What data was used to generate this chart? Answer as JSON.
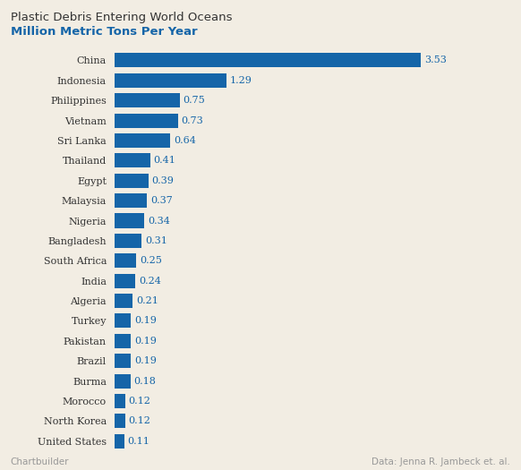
{
  "title_line1": "Plastic Debris Entering World Oceans",
  "title_line2": "Million Metric Tons Per Year",
  "countries": [
    "China",
    "Indonesia",
    "Philippines",
    "Vietnam",
    "Sri Lanka",
    "Thailand",
    "Egypt",
    "Malaysia",
    "Nigeria",
    "Bangladesh",
    "South Africa",
    "India",
    "Algeria",
    "Turkey",
    "Pakistan",
    "Brazil",
    "Burma",
    "Morocco",
    "North Korea",
    "United States"
  ],
  "values": [
    3.53,
    1.29,
    0.75,
    0.73,
    0.64,
    0.41,
    0.39,
    0.37,
    0.34,
    0.31,
    0.25,
    0.24,
    0.21,
    0.19,
    0.19,
    0.19,
    0.18,
    0.12,
    0.12,
    0.11
  ],
  "bar_color": "#1565a8",
  "label_color": "#1565a8",
  "title1_color": "#333333",
  "title2_color": "#1565a8",
  "footer_left": "Chartbuilder",
  "footer_right": "Data: Jenna R. Jambeck et. al.",
  "footer_color": "#999999",
  "bg_color": "#f2ede3",
  "xlim": [
    0,
    3.9
  ],
  "bar_height": 0.72,
  "label_fontsize": 8.0,
  "country_fontsize": 8.0,
  "title1_fontsize": 9.5,
  "title2_fontsize": 9.5
}
